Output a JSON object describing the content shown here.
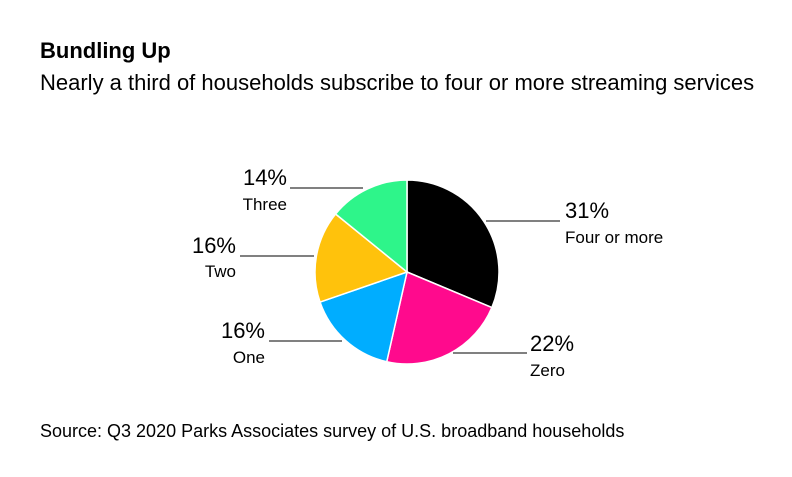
{
  "header": {
    "title": "Bundling Up",
    "subtitle": "Nearly a third of households subscribe to four or more streaming services"
  },
  "footer": {
    "source": "Source: Q3 2020 Parks Associates survey of U.S. broadband households"
  },
  "chart_data": {
    "type": "pie",
    "title": "Bundling Up",
    "subtitle": "Nearly a third of households subscribe to four or more streaming services",
    "unit": "%",
    "slices": [
      {
        "label": "Four or more",
        "value": 31,
        "value_label": "31%",
        "color": "#000000"
      },
      {
        "label": "Zero",
        "value": 22,
        "value_label": "22%",
        "color": "#ff0a8d"
      },
      {
        "label": "One",
        "value": 16,
        "value_label": "16%",
        "color": "#00adff"
      },
      {
        "label": "Two",
        "value": 16,
        "value_label": "16%",
        "color": "#ffc20c"
      },
      {
        "label": "Three",
        "value": 14,
        "value_label": "14%",
        "color": "#2ef58a"
      }
    ],
    "source": "Source: Q3 2020 Parks Associates survey of U.S. broadband households"
  }
}
